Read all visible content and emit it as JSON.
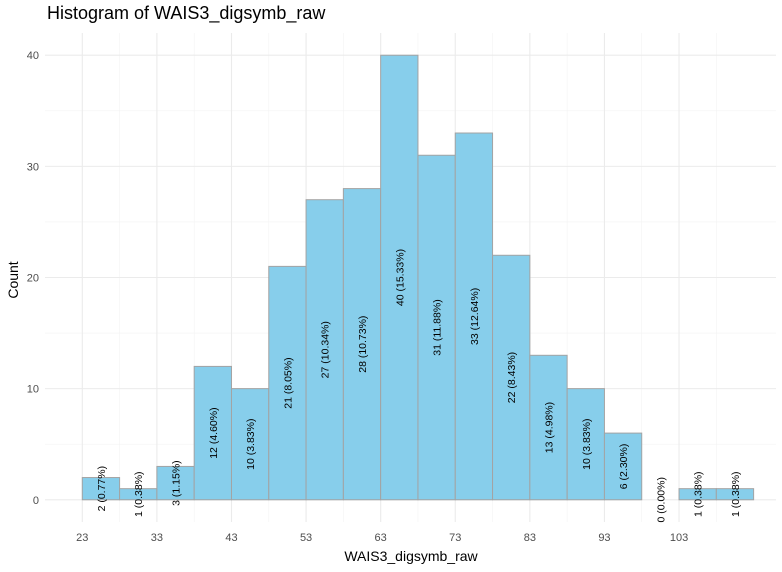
{
  "chart_data": {
    "type": "bar",
    "title": "Histogram of WAIS3_digsymb_raw",
    "xlabel": "WAIS3_digsymb_raw",
    "ylabel": "Count",
    "bin_width": 5,
    "bin_edges": [
      23,
      28,
      33,
      38,
      43,
      48,
      53,
      58,
      63,
      68,
      73,
      78,
      83,
      88,
      93,
      98,
      103,
      108,
      113
    ],
    "values": [
      2,
      1,
      3,
      12,
      10,
      21,
      27,
      28,
      40,
      31,
      33,
      22,
      13,
      10,
      6,
      0,
      1,
      1
    ],
    "labels": [
      "2 (0.77%)",
      "1 (0.38%)",
      "3 (1.15%)",
      "12 (4.60%)",
      "10 (3.83%)",
      "21 (8.05%)",
      "27 (10.34%)",
      "28 (10.73%)",
      "40 (15.33%)",
      "31 (11.88%)",
      "33 (12.64%)",
      "22 (8.43%)",
      "13 (4.98%)",
      "10 (3.83%)",
      "6 (2.30%)",
      "0 (0.00%)",
      "1 (0.38%)",
      "1 (0.38%)"
    ],
    "x_ticks": [
      23,
      33,
      43,
      53,
      63,
      73,
      83,
      93,
      103
    ],
    "y_ticks": [
      0,
      10,
      20,
      30,
      40
    ],
    "xlim": [
      18,
      116
    ],
    "ylim": [
      -2,
      42
    ],
    "grid": true,
    "bar_color": "#87CEEB",
    "bar_border_color": "#A3A3A3"
  }
}
